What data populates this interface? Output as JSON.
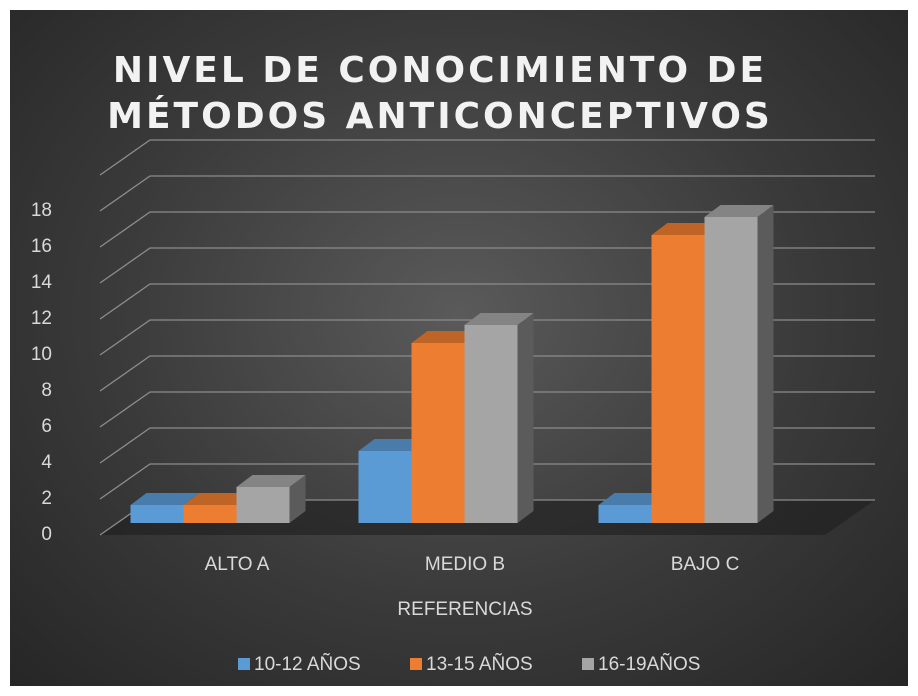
{
  "chart_data": {
    "type": "bar3d",
    "title": "NIVEL DE CONOCIMIENTO DE\nMÉTODOS ANTICONCEPTIVOS",
    "x_label": "REFERENCIAS",
    "categories": [
      "ALTO A",
      "MEDIO B",
      "BAJO C"
    ],
    "series": [
      {
        "name": "10-12 AÑOS",
        "color": "#5b9bd5",
        "values": [
          1,
          4,
          1
        ]
      },
      {
        "name": "13-15 AÑOS",
        "color": "#ed7d31",
        "values": [
          1,
          10,
          16
        ]
      },
      {
        "name": "16-19AÑOS",
        "color": "#a5a5a5",
        "values": [
          2,
          11,
          17
        ]
      }
    ],
    "ylim": [
      0,
      20
    ],
    "yticks": [
      0,
      2,
      4,
      6,
      8,
      10,
      12,
      14,
      16,
      18
    ],
    "grid": true,
    "legend": "bottom"
  }
}
